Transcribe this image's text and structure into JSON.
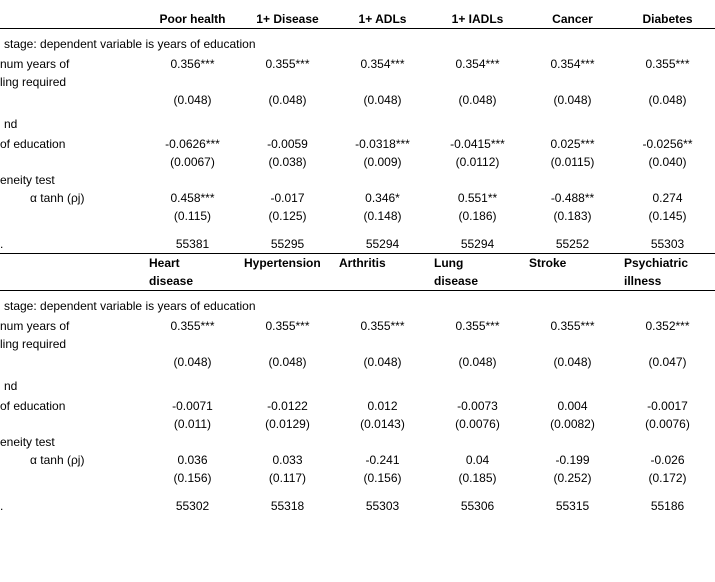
{
  "panel1": {
    "headers": [
      "Poor health",
      "1+ Disease",
      "1+ ADLs",
      "1+ IADLs",
      "Cancer",
      "Diabetes"
    ],
    "first_stage_label": "stage: dependent variable is years of education",
    "min_years_label1": "num years of",
    "min_years_label2": "ling required",
    "min_years_vals": [
      "0.356***",
      "0.355***",
      "0.354***",
      "0.354***",
      "0.354***",
      "0.355***"
    ],
    "min_years_se": [
      "(0.048)",
      "(0.048)",
      "(0.048)",
      "(0.048)",
      "(0.048)",
      "(0.048)"
    ],
    "second_label": "nd",
    "educ_label": "of education",
    "educ_vals": [
      "-0.0626***",
      "-0.0059",
      "-0.0318***",
      "-0.0415***",
      "0.025***",
      "-0.0256**"
    ],
    "educ_se": [
      "(0.0067)",
      "(0.038)",
      "(0.009)",
      "(0.0112)",
      "(0.0115)",
      "(0.040)"
    ],
    "exog_label": "eneity test",
    "alpha_label": "α tanh (ρj)",
    "alpha_vals": [
      "0.458***",
      "-0.017",
      "0.346*",
      "0.551**",
      "-0.488**",
      "0.274"
    ],
    "alpha_se": [
      "(0.115)",
      "(0.125)",
      "(0.148)",
      "(0.186)",
      "(0.183)",
      "(0.145)"
    ],
    "n_label": ".",
    "n_vals": [
      "55381",
      "55295",
      "55294",
      "55294",
      "55252",
      "55303"
    ]
  },
  "panel2": {
    "headers_l1": [
      "Heart",
      "Hypertension",
      "Arthritis",
      "Lung",
      "Stroke",
      "Psychiatric"
    ],
    "headers_l2": [
      "disease",
      "",
      "",
      "disease",
      "",
      "illness"
    ],
    "first_stage_label": "stage: dependent variable is years of education",
    "min_years_label1": "num years of",
    "min_years_label2": "ling required",
    "min_years_vals": [
      "0.355***",
      "0.355***",
      "0.355***",
      "0.355***",
      "0.355***",
      "0.352***"
    ],
    "min_years_se": [
      "(0.048)",
      "(0.048)",
      "(0.048)",
      "(0.048)",
      "(0.048)",
      "(0.047)"
    ],
    "second_label": "nd",
    "educ_label": "of education",
    "educ_vals": [
      "-0.0071",
      "-0.0122",
      "0.012",
      "-0.0073",
      "0.004",
      "-0.0017"
    ],
    "educ_se": [
      "(0.011)",
      "(0.0129)",
      "(0.0143)",
      "(0.0076)",
      "(0.0082)",
      "(0.0076)"
    ],
    "exog_label": "eneity test",
    "alpha_label": "α tanh (ρj)",
    "alpha_vals": [
      "0.036",
      "0.033",
      "-0.241",
      "0.04",
      "-0.199",
      "-0.026"
    ],
    "alpha_se": [
      "(0.156)",
      "(0.117)",
      "(0.156)",
      "(0.185)",
      "(0.252)",
      "(0.172)"
    ],
    "n_label": ".",
    "n_vals": [
      "55302",
      "55318",
      "55303",
      "55306",
      "55315",
      "55186"
    ]
  }
}
